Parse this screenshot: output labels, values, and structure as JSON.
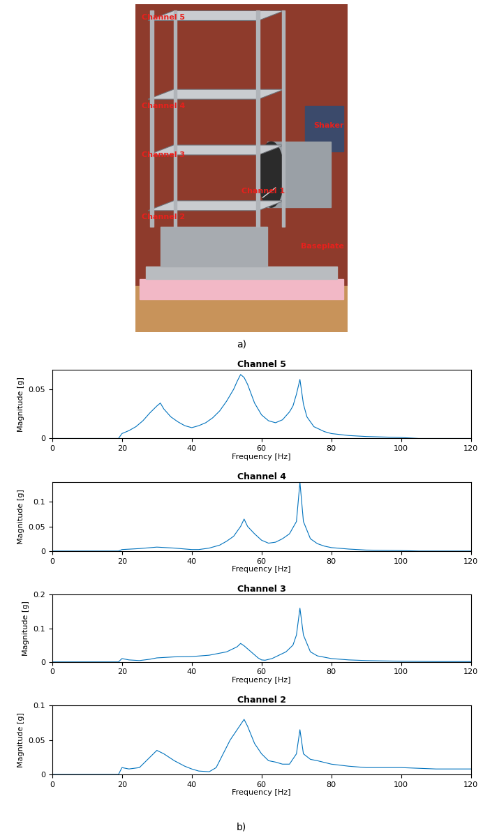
{
  "panel_a": {
    "type": "photo",
    "labels": [
      "Channel 5",
      "Channel 4",
      "Channel 3",
      "Channel 1",
      "Channel 2",
      "Shaker",
      "Baseplate"
    ],
    "caption": "a)"
  },
  "panel_b_caption": "b)",
  "chart_data": [
    {
      "type": "line",
      "title": "Channel 5",
      "x_label": "Frequency [Hz]",
      "y_label": "Magnitude [g]",
      "color": "#0072bd",
      "x": [
        0,
        19,
        20,
        22,
        24,
        26,
        28,
        30,
        31,
        32,
        34,
        36,
        38,
        40,
        42,
        44,
        46,
        48,
        50,
        52,
        53,
        54,
        55,
        56,
        58,
        60,
        62,
        64,
        66,
        68,
        69,
        70,
        71,
        72,
        73,
        75,
        78,
        80,
        85,
        90,
        100,
        105,
        120
      ],
      "values": [
        0,
        0,
        0.005,
        0.008,
        0.012,
        0.018,
        0.026,
        0.033,
        0.036,
        0.03,
        0.022,
        0.017,
        0.013,
        0.011,
        0.013,
        0.016,
        0.021,
        0.028,
        0.038,
        0.05,
        0.058,
        0.065,
        0.062,
        0.055,
        0.036,
        0.024,
        0.018,
        0.016,
        0.019,
        0.027,
        0.033,
        0.045,
        0.06,
        0.035,
        0.022,
        0.012,
        0.007,
        0.005,
        0.003,
        0.002,
        0.001,
        0,
        0
      ],
      "xlim": [
        0,
        120
      ],
      "xticks": [
        0,
        20,
        40,
        60,
        80,
        100,
        120
      ],
      "ylim": [
        0,
        0.07
      ],
      "yticks": [
        0,
        0.05
      ]
    },
    {
      "type": "line",
      "title": "Channel 4",
      "x_label": "Frequency [Hz]",
      "y_label": "Magnitude [g]",
      "color": "#0072bd",
      "x": [
        0,
        19,
        20,
        25,
        30,
        35,
        40,
        42,
        45,
        48,
        50,
        52,
        54,
        55,
        56,
        58,
        60,
        62,
        64,
        66,
        68,
        70,
        71,
        72,
        74,
        76,
        78,
        80,
        85,
        90,
        100,
        105,
        120
      ],
      "values": [
        0,
        0,
        0.003,
        0.005,
        0.008,
        0.006,
        0.003,
        0.003,
        0.006,
        0.012,
        0.02,
        0.03,
        0.05,
        0.065,
        0.05,
        0.035,
        0.022,
        0.016,
        0.018,
        0.025,
        0.035,
        0.06,
        0.14,
        0.06,
        0.025,
        0.015,
        0.01,
        0.007,
        0.004,
        0.002,
        0.001,
        0,
        0
      ],
      "xlim": [
        0,
        120
      ],
      "xticks": [
        0,
        20,
        40,
        60,
        80,
        100,
        120
      ],
      "ylim": [
        0,
        0.14
      ],
      "yticks": [
        0,
        0.05,
        0.1
      ]
    },
    {
      "type": "line",
      "title": "Channel 3",
      "x_label": "Frequency [Hz]",
      "y_label": "Magnitude [g]",
      "color": "#0072bd",
      "x": [
        0,
        19,
        20,
        22,
        25,
        28,
        30,
        35,
        40,
        45,
        50,
        53,
        54,
        55,
        57,
        59,
        60,
        61,
        63,
        65,
        67,
        69,
        70,
        71,
        72,
        74,
        76,
        78,
        80,
        85,
        90,
        100,
        110,
        120
      ],
      "values": [
        0,
        0,
        0.01,
        0.006,
        0.004,
        0.008,
        0.012,
        0.015,
        0.016,
        0.02,
        0.03,
        0.045,
        0.055,
        0.048,
        0.03,
        0.012,
        0.006,
        0.005,
        0.01,
        0.02,
        0.03,
        0.05,
        0.08,
        0.16,
        0.08,
        0.03,
        0.018,
        0.014,
        0.01,
        0.006,
        0.004,
        0.002,
        0.001,
        0.001
      ],
      "xlim": [
        0,
        120
      ],
      "xticks": [
        0,
        20,
        40,
        60,
        80,
        100,
        120
      ],
      "ylim": [
        0,
        0.2
      ],
      "yticks": [
        0,
        0.1,
        0.2
      ]
    },
    {
      "type": "line",
      "title": "Channel 2",
      "x_label": "Frequency [Hz]",
      "y_label": "Magnitude [g]",
      "color": "#0072bd",
      "x": [
        0,
        19,
        20,
        22,
        25,
        28,
        30,
        32,
        35,
        38,
        40,
        42,
        45,
        47,
        49,
        51,
        53,
        55,
        56,
        58,
        60,
        62,
        64,
        66,
        68,
        70,
        71,
        72,
        74,
        76,
        80,
        85,
        90,
        100,
        110,
        120
      ],
      "values": [
        0,
        0,
        0.01,
        0.008,
        0.01,
        0.025,
        0.035,
        0.03,
        0.02,
        0.012,
        0.008,
        0.005,
        0.004,
        0.01,
        0.03,
        0.05,
        0.065,
        0.08,
        0.07,
        0.045,
        0.03,
        0.02,
        0.018,
        0.015,
        0.015,
        0.03,
        0.065,
        0.03,
        0.022,
        0.02,
        0.015,
        0.012,
        0.01,
        0.01,
        0.008,
        0.008
      ],
      "xlim": [
        0,
        120
      ],
      "xticks": [
        0,
        20,
        40,
        60,
        80,
        100,
        120
      ],
      "ylim": [
        0,
        0.1
      ],
      "yticks": [
        0,
        0.05,
        0.1
      ]
    }
  ]
}
